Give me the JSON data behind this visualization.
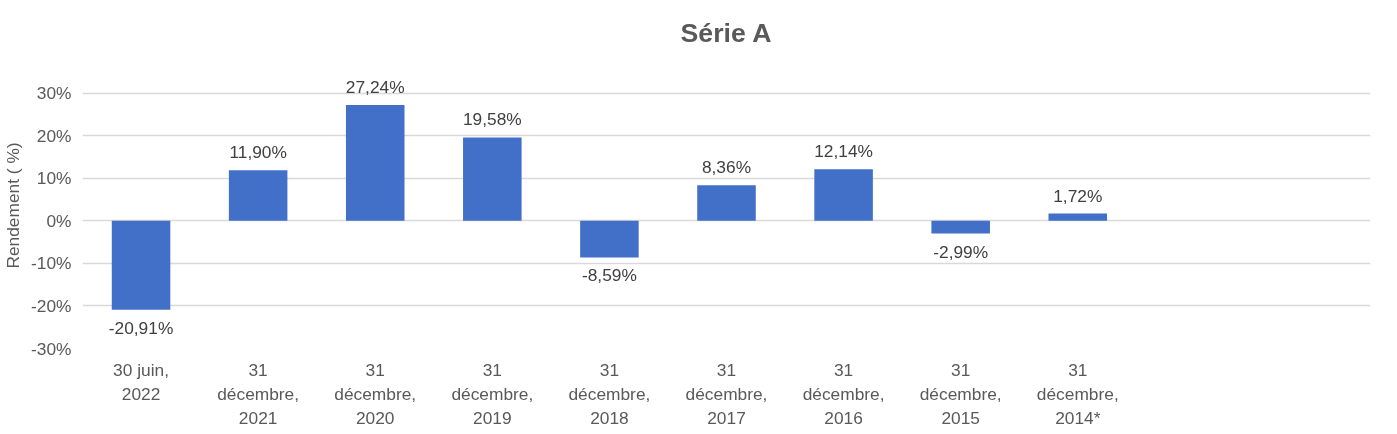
{
  "chart_data": {
    "type": "bar",
    "title": "Série A",
    "ylabel": "Rendement ( %)",
    "categories": [
      "30 juin,\n2022",
      "31\ndécembre,\n2021",
      "31\ndécembre,\n2020",
      "31\ndécembre,\n2019",
      "31\ndécembre,\n2018",
      "31\ndécembre,\n2017",
      "31\ndécembre,\n2016",
      "31\ndécembre,\n2015",
      "31\ndécembre,\n2014*",
      null,
      null
    ],
    "values": [
      -20.91,
      11.9,
      27.24,
      19.58,
      -8.59,
      8.36,
      12.14,
      -2.99,
      1.72,
      null,
      null
    ],
    "value_labels": [
      "-20,91%",
      "11,90%",
      "27,24%",
      "19,58%",
      "-8,59%",
      "8,36%",
      "12,14%",
      "-2,99%",
      "1,72%",
      null,
      null
    ],
    "color": "#4270c8",
    "ylim": [
      -30,
      30
    ],
    "yticks": [
      {
        "value": -30,
        "label": "-30%"
      },
      {
        "value": -20,
        "label": "-20%"
      },
      {
        "value": -10,
        "label": "-10%"
      },
      {
        "value": 0,
        "label": "0%"
      },
      {
        "value": 10,
        "label": "10%"
      },
      {
        "value": 20,
        "label": "20%"
      },
      {
        "value": 30,
        "label": "30%"
      }
    ],
    "grid": "y"
  }
}
